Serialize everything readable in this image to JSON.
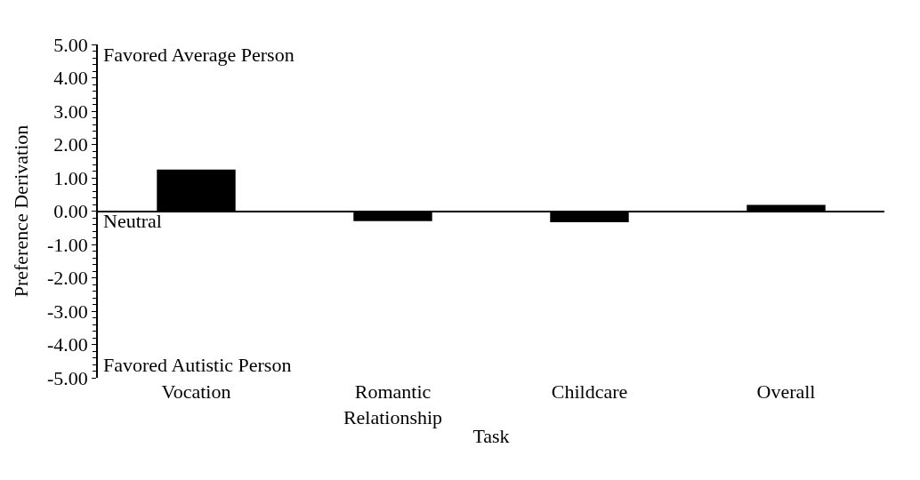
{
  "chart_data": {
    "type": "bar",
    "xlabel": "Task",
    "ylabel": "Preference Derivation",
    "categories": [
      "Vocation",
      "Romantic Relationship",
      "Childcare",
      "Overall"
    ],
    "values": [
      1.25,
      -0.3,
      -0.33,
      0.19
    ],
    "color": "#000000",
    "ylim": [
      -5,
      5
    ],
    "yticks": [
      {
        "value": -5,
        "label": "-5.00"
      },
      {
        "value": -4,
        "label": "-4.00"
      },
      {
        "value": -3,
        "label": "-3.00"
      },
      {
        "value": -2,
        "label": "-2.00"
      },
      {
        "value": -1,
        "label": "-1.00"
      },
      {
        "value": 0,
        "label": "0.00"
      },
      {
        "value": 1,
        "label": "1.00"
      },
      {
        "value": 2,
        "label": "2.00"
      },
      {
        "value": 3,
        "label": "3.00"
      },
      {
        "value": 4,
        "label": "4.00"
      },
      {
        "value": 5,
        "label": "5.00"
      }
    ],
    "legend": false,
    "annotations": [
      "Favored Average Person",
      "Neutral",
      "Favored Autistic Person"
    ]
  }
}
